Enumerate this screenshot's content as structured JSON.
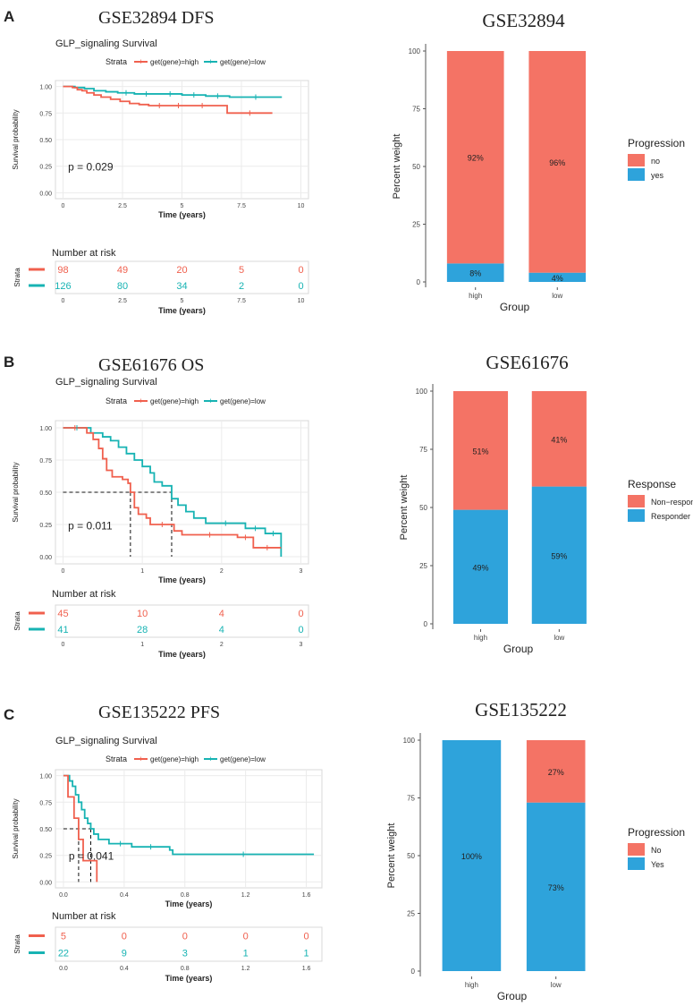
{
  "panels": [
    {
      "letter": "A",
      "km": {
        "heading": "GSE32894 DFS",
        "subtitle": "GLP_signaling Survival",
        "strata_label": "Strata",
        "legend": [
          "get(gene)=high",
          "get(gene)=low"
        ],
        "ylabel": "Survival probability",
        "xlabel": "Time (years)",
        "xticks": [
          "0",
          "2.5",
          "5",
          "7.5",
          "10"
        ],
        "xtick_values": [
          0,
          2.5,
          5,
          7.5,
          10
        ],
        "xmax": 10,
        "yticks": [
          "0.00",
          "0.25",
          "0.50",
          "0.75",
          "1.00"
        ],
        "pvalue": "p = 0.029",
        "median_lines": false,
        "high_steps": [
          [
            0,
            1.0
          ],
          [
            0.4,
            0.99
          ],
          [
            0.6,
            0.97
          ],
          [
            0.8,
            0.96
          ],
          [
            1.0,
            0.94
          ],
          [
            1.3,
            0.92
          ],
          [
            1.6,
            0.9
          ],
          [
            2.0,
            0.88
          ],
          [
            2.4,
            0.86
          ],
          [
            2.8,
            0.84
          ],
          [
            3.2,
            0.83
          ],
          [
            3.6,
            0.82
          ],
          [
            4.5,
            0.82
          ],
          [
            5.2,
            0.82
          ],
          [
            6.5,
            0.82
          ],
          [
            6.9,
            0.75
          ],
          [
            8.8,
            0.75
          ]
        ],
        "low_steps": [
          [
            0,
            1.0
          ],
          [
            0.5,
            0.99
          ],
          [
            0.9,
            0.98
          ],
          [
            1.3,
            0.96
          ],
          [
            1.8,
            0.95
          ],
          [
            2.3,
            0.94
          ],
          [
            3.0,
            0.93
          ],
          [
            4.0,
            0.93
          ],
          [
            5.0,
            0.92
          ],
          [
            6.0,
            0.91
          ],
          [
            7.0,
            0.9
          ],
          [
            9.2,
            0.9
          ]
        ],
        "risk_title": "Number at risk",
        "risk_ylabel": "Strata",
        "risk_high": [
          "98",
          "49",
          "20",
          "5",
          "0"
        ],
        "risk_low": [
          "126",
          "80",
          "34",
          "2",
          "0"
        ]
      },
      "bar": {
        "title": "GSE32894",
        "ylabel": "Percent weight",
        "xlabel": "Group",
        "categories": [
          "high",
          "low"
        ],
        "yticks": [
          "0",
          "25",
          "50",
          "75",
          "100"
        ],
        "legend_title": "Progression",
        "top_name": "no",
        "bottom_name": "yes",
        "top_values": [
          92,
          96
        ],
        "bottom_values": [
          8,
          4
        ],
        "top_labels": [
          "92%",
          "96%"
        ],
        "bottom_labels": [
          "8%",
          "4%"
        ]
      }
    },
    {
      "letter": "B",
      "km": {
        "heading": "GSE61676 OS",
        "subtitle": "GLP_signaling Survival",
        "strata_label": "Strata",
        "legend": [
          "get(gene)=high",
          "get(gene)=low"
        ],
        "ylabel": "Survival probability",
        "xlabel": "Time (years)",
        "xticks": [
          "0",
          "1",
          "2",
          "3"
        ],
        "xtick_values": [
          0,
          1,
          2,
          3
        ],
        "xmax": 3,
        "yticks": [
          "0.00",
          "0.25",
          "0.50",
          "0.75",
          "1.00"
        ],
        "pvalue": "p = 0.011",
        "median_lines": true,
        "median_high": 0.85,
        "median_low": 1.37,
        "high_steps": [
          [
            0,
            1.0
          ],
          [
            0.3,
            0.96
          ],
          [
            0.38,
            0.91
          ],
          [
            0.45,
            0.84
          ],
          [
            0.5,
            0.76
          ],
          [
            0.55,
            0.67
          ],
          [
            0.62,
            0.62
          ],
          [
            0.75,
            0.6
          ],
          [
            0.82,
            0.57
          ],
          [
            0.85,
            0.5
          ],
          [
            0.9,
            0.38
          ],
          [
            0.95,
            0.33
          ],
          [
            1.05,
            0.3
          ],
          [
            1.1,
            0.25
          ],
          [
            1.4,
            0.2
          ],
          [
            1.5,
            0.17
          ],
          [
            2.2,
            0.15
          ],
          [
            2.4,
            0.07
          ],
          [
            2.75,
            0.07
          ]
        ],
        "low_steps": [
          [
            0,
            1.0
          ],
          [
            0.35,
            0.96
          ],
          [
            0.5,
            0.93
          ],
          [
            0.6,
            0.9
          ],
          [
            0.7,
            0.85
          ],
          [
            0.8,
            0.8
          ],
          [
            0.9,
            0.75
          ],
          [
            1.0,
            0.7
          ],
          [
            1.1,
            0.65
          ],
          [
            1.15,
            0.58
          ],
          [
            1.25,
            0.55
          ],
          [
            1.37,
            0.45
          ],
          [
            1.45,
            0.4
          ],
          [
            1.55,
            0.35
          ],
          [
            1.65,
            0.3
          ],
          [
            1.8,
            0.26
          ],
          [
            2.3,
            0.22
          ],
          [
            2.55,
            0.18
          ],
          [
            2.75,
            0.18
          ],
          [
            2.75,
            0.0
          ]
        ],
        "risk_title": "Number at risk",
        "risk_ylabel": "Strata",
        "risk_high": [
          "45",
          "10",
          "4",
          "0"
        ],
        "risk_low": [
          "41",
          "28",
          "4",
          "0"
        ]
      },
      "bar": {
        "title": "GSE61676",
        "ylabel": "Percent weight",
        "xlabel": "Group",
        "categories": [
          "high",
          "low"
        ],
        "yticks": [
          "0",
          "25",
          "50",
          "75",
          "100"
        ],
        "legend_title": "Response",
        "top_name": "Non−responder",
        "bottom_name": "Responder",
        "top_values": [
          51,
          41
        ],
        "bottom_values": [
          49,
          59
        ],
        "top_labels": [
          "51%",
          "41%"
        ],
        "bottom_labels": [
          "49%",
          "59%"
        ]
      }
    },
    {
      "letter": "C",
      "km": {
        "heading": "GSE135222 PFS",
        "subtitle": "GLP_signaling Survival",
        "strata_label": "Strata",
        "legend": [
          "get(gene)=high",
          "get(gene)=low"
        ],
        "ylabel": "Survival probability",
        "xlabel": "Time (years)",
        "xticks": [
          "0.0",
          "0.4",
          "0.8",
          "1.2",
          "1.6"
        ],
        "xtick_values": [
          0,
          0.4,
          0.8,
          1.2,
          1.6
        ],
        "xmax": 1.65,
        "yticks": [
          "0.00",
          "0.25",
          "0.50",
          "0.75",
          "1.00"
        ],
        "pvalue": "p = 0.041",
        "median_lines": true,
        "median_high": 0.1,
        "median_low": 0.18,
        "high_steps": [
          [
            0,
            1.0
          ],
          [
            0.03,
            0.8
          ],
          [
            0.07,
            0.6
          ],
          [
            0.1,
            0.4
          ],
          [
            0.13,
            0.2
          ],
          [
            0.22,
            0.0
          ]
        ],
        "low_steps": [
          [
            0,
            1.0
          ],
          [
            0.04,
            0.95
          ],
          [
            0.06,
            0.9
          ],
          [
            0.08,
            0.82
          ],
          [
            0.1,
            0.75
          ],
          [
            0.12,
            0.68
          ],
          [
            0.14,
            0.6
          ],
          [
            0.16,
            0.55
          ],
          [
            0.18,
            0.5
          ],
          [
            0.2,
            0.45
          ],
          [
            0.23,
            0.4
          ],
          [
            0.3,
            0.36
          ],
          [
            0.45,
            0.33
          ],
          [
            0.7,
            0.3
          ],
          [
            0.72,
            0.26
          ],
          [
            1.65,
            0.26
          ]
        ],
        "risk_title": "Number at risk",
        "risk_ylabel": "Strata",
        "risk_high": [
          "5",
          "0",
          "0",
          "0",
          "0"
        ],
        "risk_low": [
          "22",
          "9",
          "3",
          "1",
          "1"
        ]
      },
      "bar": {
        "title": "GSE135222",
        "ylabel": "Percent weight",
        "xlabel": "Group",
        "categories": [
          "high",
          "low"
        ],
        "yticks": [
          "0",
          "25",
          "50",
          "75",
          "100"
        ],
        "legend_title": "Progression",
        "top_name": "No",
        "bottom_name": "Yes",
        "top_values": [
          0,
          27
        ],
        "bottom_values": [
          100,
          73
        ],
        "top_labels": [
          "",
          "27%"
        ],
        "bottom_labels": [
          "100%",
          "73%"
        ]
      }
    }
  ],
  "colors": {
    "high": "#f0604e",
    "low": "#17b3b3",
    "bar_top": "#f47365",
    "bar_bottom": "#2ea3db",
    "grid": "#ebebeb",
    "axis": "#555555"
  },
  "chart_data": [
    {
      "type": "line",
      "title": "GSE32894 DFS",
      "xlabel": "Time (years)",
      "ylabel": "Survival probability",
      "series": [
        {
          "name": "get(gene)=high"
        },
        {
          "name": "get(gene)=low"
        }
      ],
      "annotation": "p = 0.029"
    },
    {
      "type": "bar",
      "title": "GSE32894",
      "categories": [
        "high",
        "low"
      ],
      "series": [
        {
          "name": "no",
          "values": [
            92,
            96
          ]
        },
        {
          "name": "yes",
          "values": [
            8,
            4
          ]
        }
      ],
      "xlabel": "Group",
      "ylabel": "Percent weight",
      "ylim": [
        0,
        100
      ]
    },
    {
      "type": "line",
      "title": "GSE61676 OS",
      "xlabel": "Time (years)",
      "ylabel": "Survival probability",
      "series": [
        {
          "name": "get(gene)=high"
        },
        {
          "name": "get(gene)=low"
        }
      ],
      "annotation": "p = 0.011"
    },
    {
      "type": "bar",
      "title": "GSE61676",
      "categories": [
        "high",
        "low"
      ],
      "series": [
        {
          "name": "Non−responder",
          "values": [
            51,
            41
          ]
        },
        {
          "name": "Responder",
          "values": [
            49,
            59
          ]
        }
      ],
      "xlabel": "Group",
      "ylabel": "Percent weight",
      "ylim": [
        0,
        100
      ]
    },
    {
      "type": "line",
      "title": "GSE135222 PFS",
      "xlabel": "Time (years)",
      "ylabel": "Survival probability",
      "series": [
        {
          "name": "get(gene)=high"
        },
        {
          "name": "get(gene)=low"
        }
      ],
      "annotation": "p = 0.041"
    },
    {
      "type": "bar",
      "title": "GSE135222",
      "categories": [
        "high",
        "low"
      ],
      "series": [
        {
          "name": "No",
          "values": [
            0,
            27
          ]
        },
        {
          "name": "Yes",
          "values": [
            100,
            73
          ]
        }
      ],
      "xlabel": "Group",
      "ylabel": "Percent weight",
      "ylim": [
        0,
        100
      ]
    }
  ]
}
